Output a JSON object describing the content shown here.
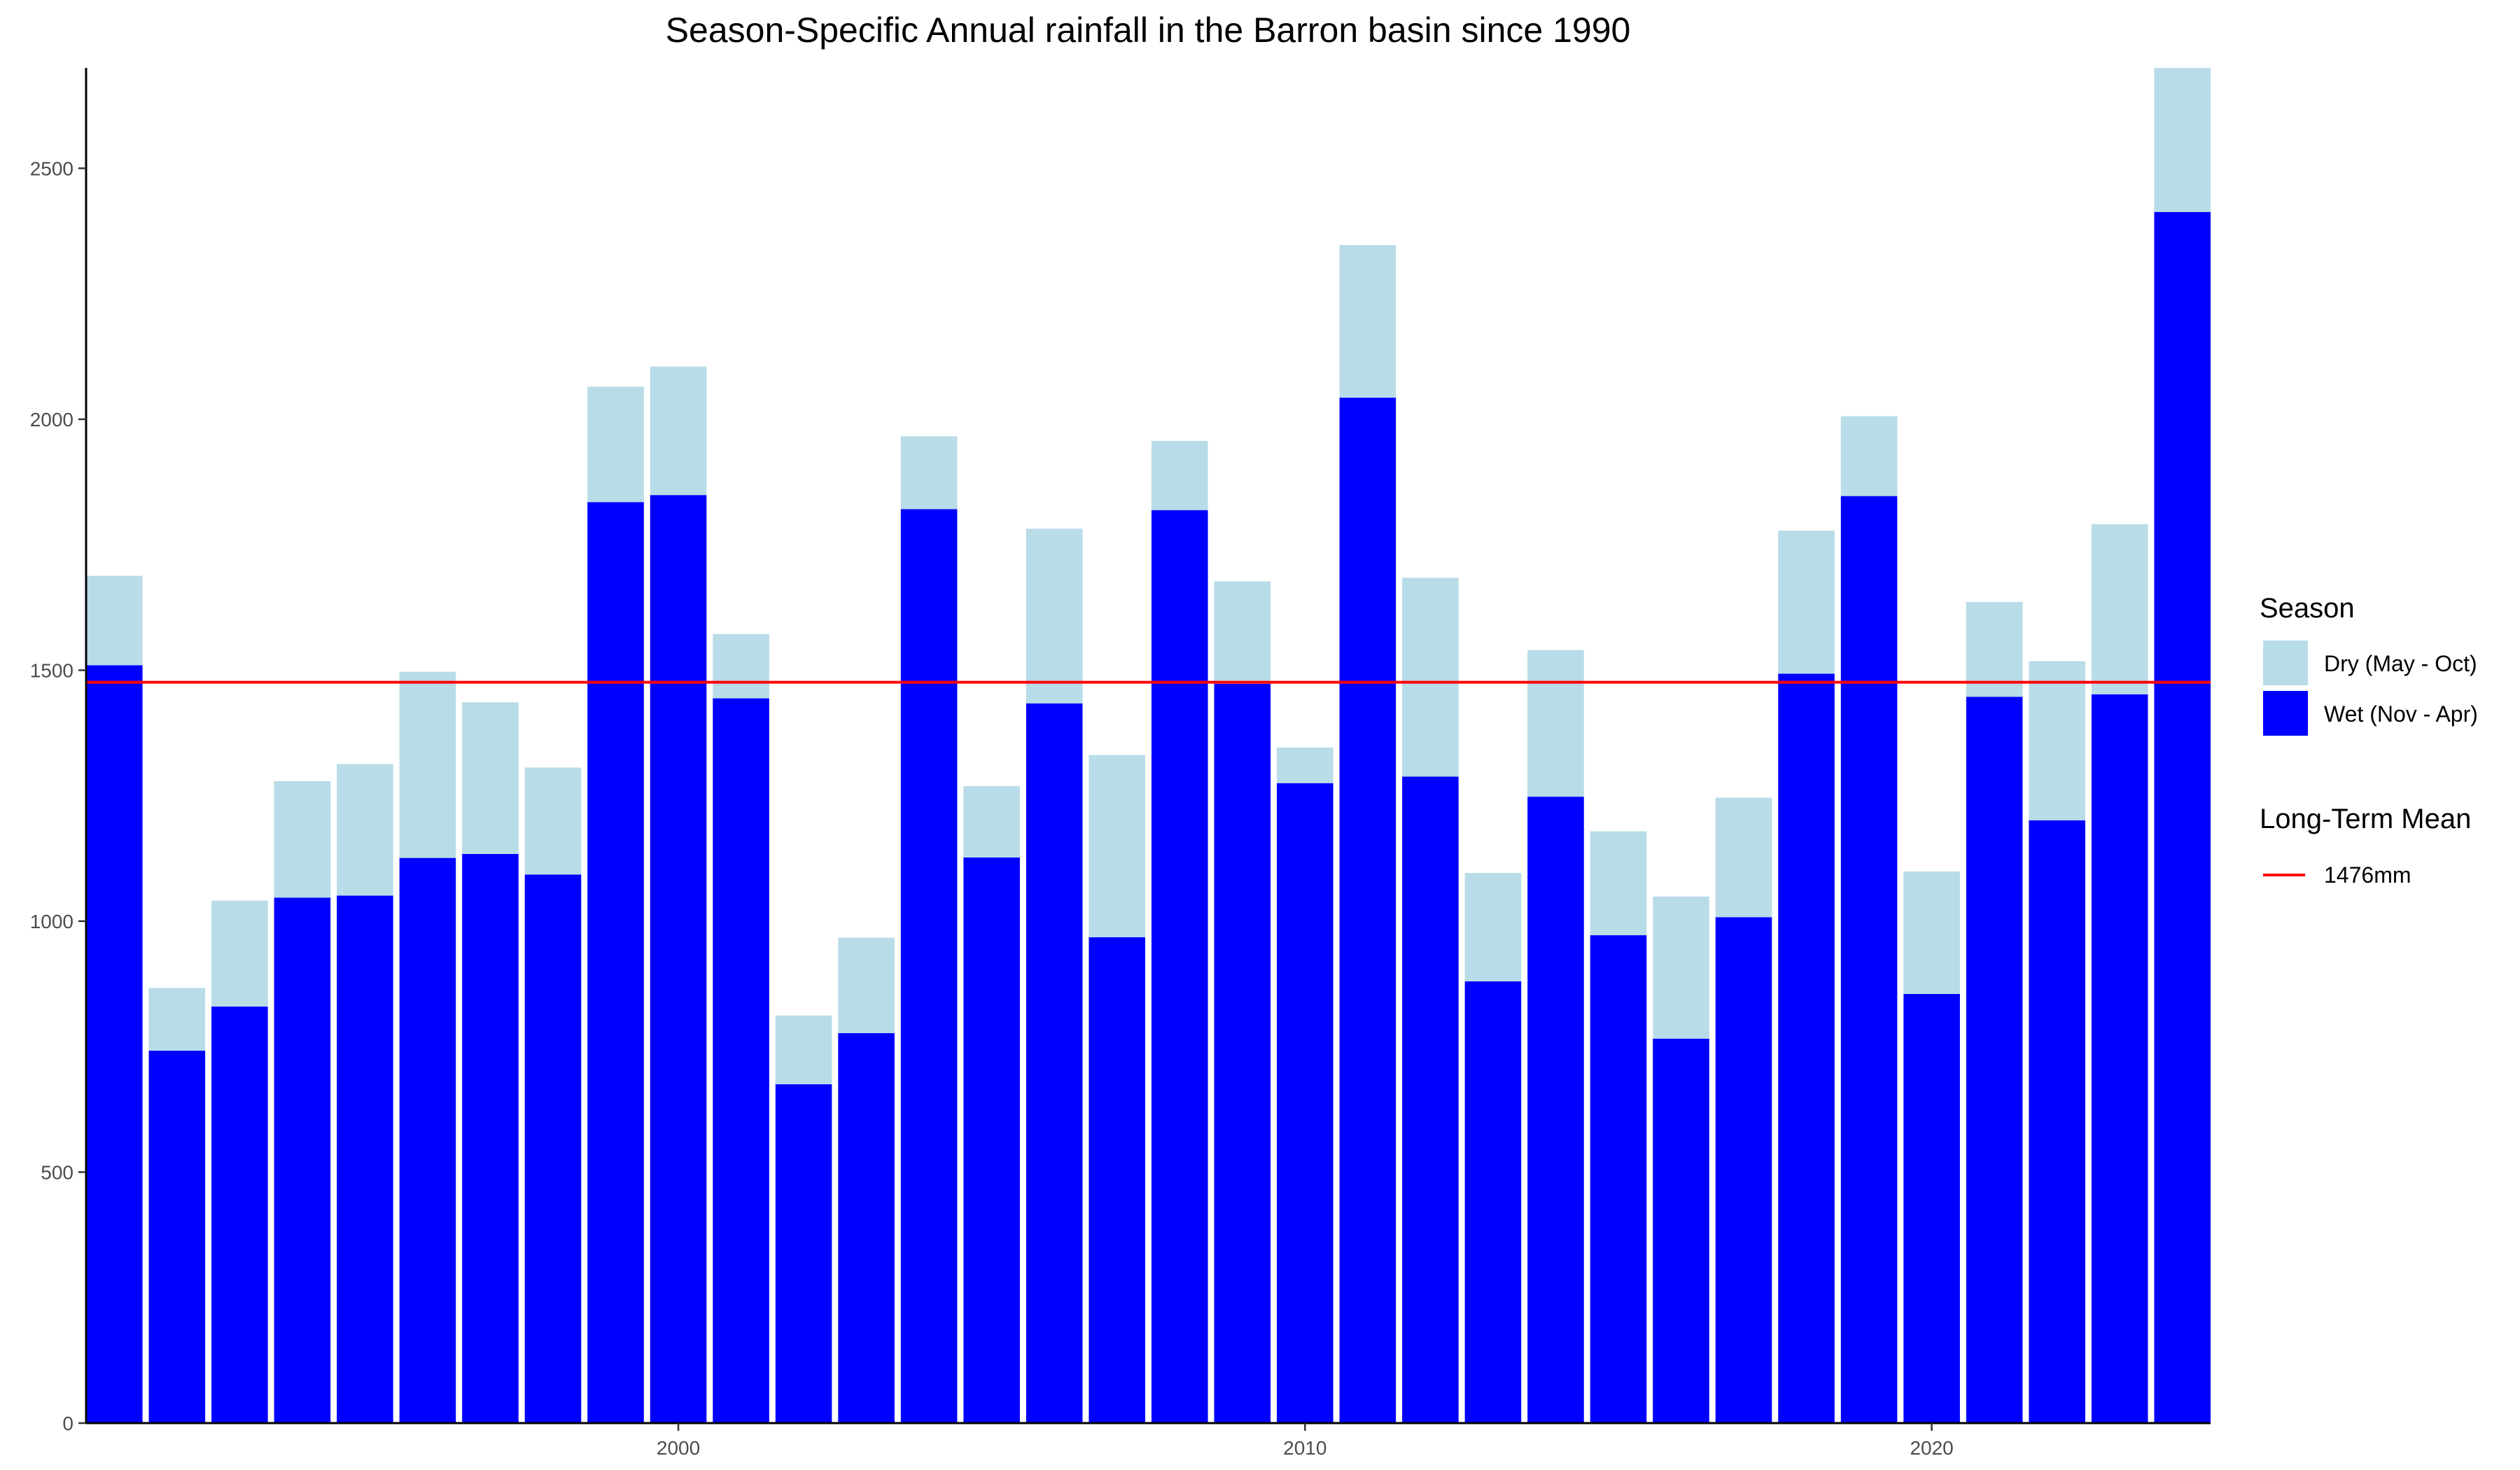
{
  "chart_data": {
    "type": "bar",
    "stacked": true,
    "title": "Season-Specific Annual rainfall in the Barron basin since 1990",
    "xlabel": "",
    "ylabel": "",
    "x": [
      1991,
      1992,
      1993,
      1994,
      1995,
      1996,
      1997,
      1998,
      1999,
      2000,
      2001,
      2002,
      2003,
      2004,
      2005,
      2006,
      2007,
      2008,
      2009,
      2010,
      2011,
      2012,
      2013,
      2014,
      2015,
      2016,
      2017,
      2018,
      2019,
      2020,
      2021,
      2022,
      2023,
      2024
    ],
    "xlim": [
      1990.55,
      2024.45
    ],
    "ylim": [
      0,
      2700
    ],
    "x_ticks": [
      2000,
      2010,
      2020
    ],
    "x_tick_labels": [
      "2000",
      "2010",
      "2020"
    ],
    "y_ticks": [
      0,
      500,
      1000,
      1500,
      2000,
      2500
    ],
    "y_tick_labels": [
      "0",
      "500",
      "1000",
      "1500",
      "2000",
      "2500"
    ],
    "grid": false,
    "legend_position": "right",
    "legend_title": "Season",
    "series": [
      {
        "name": "Wet (Nov - Apr)",
        "color": "#0000ff",
        "values": [
          1510,
          742,
          830,
          1047,
          1051,
          1126,
          1134,
          1093,
          1835,
          1849,
          1444,
          675,
          777,
          1821,
          1127,
          1434,
          968,
          1819,
          1473,
          1275,
          2043,
          1288,
          880,
          1248,
          972,
          766,
          1008,
          1493,
          1847,
          855,
          1447,
          1201,
          1452,
          2413
        ]
      },
      {
        "name": "Dry (May - Oct)",
        "color": "#b8dce8",
        "values": [
          178,
          125,
          211,
          232,
          262,
          371,
          302,
          213,
          230,
          256,
          128,
          137,
          190,
          145,
          142,
          348,
          363,
          138,
          204,
          71,
          304,
          396,
          216,
          292,
          207,
          283,
          238,
          285,
          159,
          244,
          189,
          317,
          339,
          410
        ]
      }
    ],
    "reference_line": {
      "value": 1476,
      "color": "#ff0000",
      "legend_title": "Long-Term Mean",
      "label": "1476mm"
    }
  }
}
